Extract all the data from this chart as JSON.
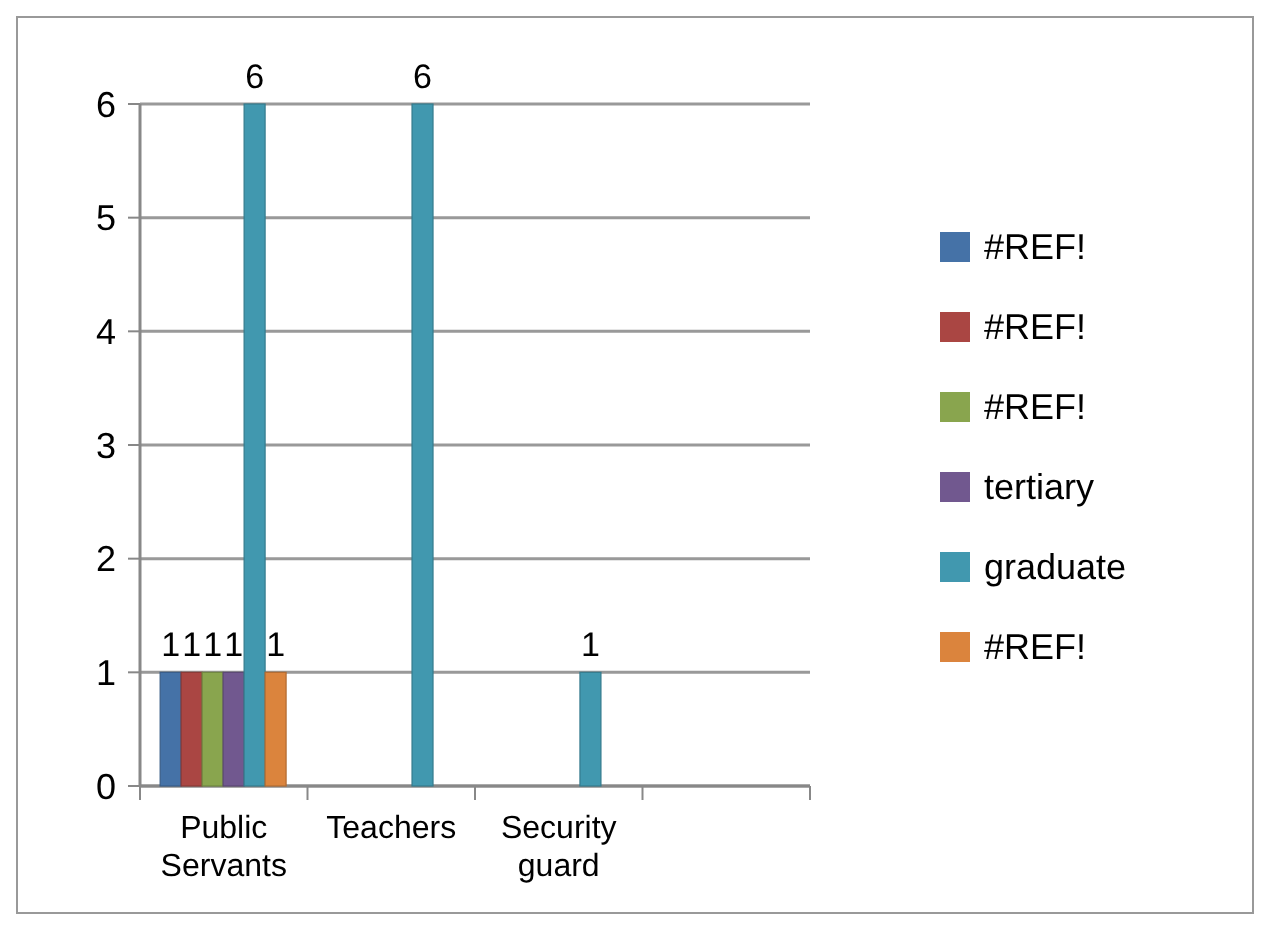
{
  "chart_data": {
    "type": "bar",
    "categories": [
      "Public Servants",
      "Teachers",
      "Security guard",
      null
    ],
    "series": [
      {
        "name": "#REF!",
        "color": "#4572a7",
        "values": [
          1,
          null,
          null,
          null
        ]
      },
      {
        "name": "#REF!",
        "color": "#aa4643",
        "values": [
          1,
          null,
          null,
          null
        ]
      },
      {
        "name": "#REF!",
        "color": "#89a54e",
        "values": [
          1,
          null,
          null,
          null
        ]
      },
      {
        "name": "tertiary",
        "color": "#71588f",
        "values": [
          1,
          null,
          null,
          null
        ]
      },
      {
        "name": "graduate",
        "color": "#4198af",
        "values": [
          6,
          6,
          1,
          null
        ]
      },
      {
        "name": "#REF!",
        "color": "#db843d",
        "values": [
          1,
          null,
          null,
          null
        ]
      }
    ],
    "ylim": [
      0,
      6
    ],
    "yticks": [
      0,
      1,
      2,
      3,
      4,
      5,
      6
    ],
    "grid": "y",
    "legend": "right",
    "data_labels": true
  }
}
